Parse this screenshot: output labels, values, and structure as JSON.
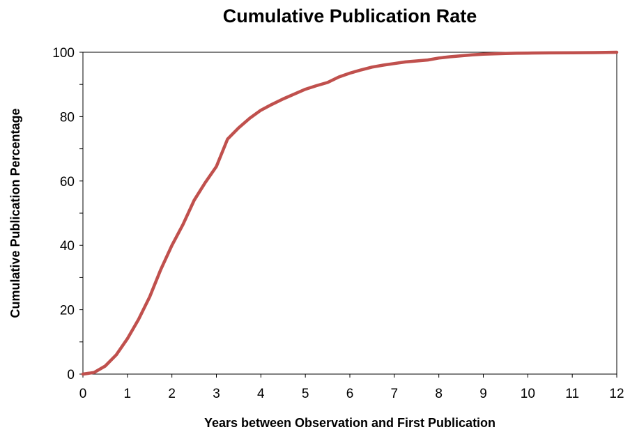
{
  "chart_data": {
    "type": "line",
    "title": "Cumulative Publication Rate",
    "xlabel": "Years between Observation and First Publication",
    "ylabel": "Cumulative Publication Percentage",
    "xlim": [
      0,
      12
    ],
    "ylim": [
      0,
      100
    ],
    "xticks": [
      "0",
      "1",
      "2",
      "3",
      "4",
      "5",
      "6",
      "7",
      "8",
      "9",
      "10",
      "11",
      "12"
    ],
    "yticks": [
      "0",
      "20",
      "40",
      "60",
      "80",
      "100"
    ],
    "grid": false,
    "legend": "none",
    "series": [
      {
        "color": "#c0504d",
        "x": [
          0,
          0.25,
          0.5,
          0.75,
          1.0,
          1.25,
          1.5,
          1.75,
          2.0,
          2.25,
          2.5,
          2.75,
          3.0,
          3.25,
          3.5,
          3.75,
          4.0,
          4.25,
          4.5,
          4.75,
          5.0,
          5.25,
          5.5,
          5.75,
          6.0,
          6.25,
          6.5,
          6.75,
          7.0,
          7.25,
          7.5,
          7.75,
          8.0,
          8.25,
          8.5,
          8.75,
          9.0,
          9.25,
          9.5,
          9.75,
          10.0,
          10.5,
          11.0,
          11.5,
          12.0
        ],
        "y": [
          0,
          0.5,
          2.5,
          6,
          11,
          17,
          24,
          32.5,
          40,
          46.5,
          54,
          59.5,
          64.5,
          73,
          76.5,
          79.5,
          82,
          83.8,
          85.5,
          87,
          88.5,
          89.6,
          90.6,
          92.3,
          93.5,
          94.5,
          95.4,
          96,
          96.5,
          97,
          97.3,
          97.6,
          98.2,
          98.6,
          98.9,
          99.2,
          99.4,
          99.5,
          99.6,
          99.7,
          99.75,
          99.8,
          99.85,
          99.9,
          100
        ]
      }
    ]
  }
}
